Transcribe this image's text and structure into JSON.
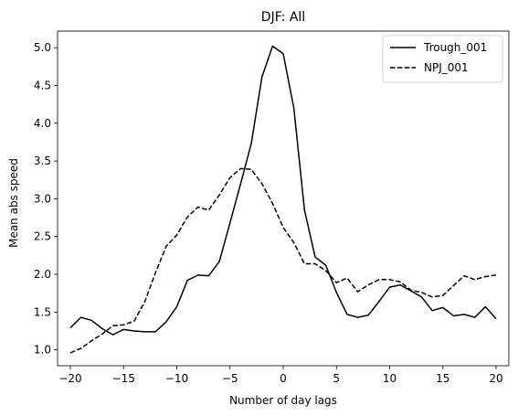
{
  "chart_data": {
    "type": "line",
    "title": "DJF: All",
    "xlabel": "Number of day lags",
    "ylabel": "Mean abs speed",
    "xlim": [
      -21.2,
      21.2
    ],
    "ylim": [
      0.79,
      5.22
    ],
    "xticks": [
      -20,
      -15,
      -10,
      -5,
      0,
      5,
      10,
      15,
      20
    ],
    "xtick_labels": [
      "−20",
      "−15",
      "−10",
      "−5",
      "0",
      "5",
      "10",
      "15",
      "20"
    ],
    "yticks": [
      1.0,
      1.5,
      2.0,
      2.5,
      3.0,
      3.5,
      4.0,
      4.5,
      5.0
    ],
    "ytick_labels": [
      "1.0",
      "1.5",
      "2.0",
      "2.5",
      "3.0",
      "3.5",
      "4.0",
      "4.5",
      "5.0"
    ],
    "grid": false,
    "legend_position": "top-right",
    "x": [
      -20,
      -19,
      -18,
      -17,
      -16,
      -15,
      -14,
      -13,
      -12,
      -11,
      -10,
      -9,
      -8,
      -7,
      -6,
      -5,
      -4,
      -3,
      -2,
      -1,
      0,
      1,
      2,
      3,
      4,
      5,
      6,
      7,
      8,
      9,
      10,
      11,
      12,
      13,
      14,
      15,
      16,
      17,
      18,
      19,
      20
    ],
    "series": [
      {
        "name": "Trough_001",
        "style": "solid",
        "color": "#000000",
        "values": [
          1.29,
          1.43,
          1.39,
          1.28,
          1.2,
          1.27,
          1.25,
          1.24,
          1.24,
          1.37,
          1.57,
          1.92,
          1.99,
          1.98,
          2.17,
          2.68,
          3.2,
          3.73,
          4.61,
          5.02,
          4.92,
          4.2,
          2.85,
          2.23,
          2.12,
          1.76,
          1.47,
          1.43,
          1.46,
          1.64,
          1.83,
          1.86,
          1.78,
          1.7,
          1.52,
          1.56,
          1.45,
          1.47,
          1.43,
          1.57,
          1.41
        ]
      },
      {
        "name": "NPJ_001",
        "style": "dashed",
        "color": "#000000",
        "values": [
          0.96,
          1.02,
          1.12,
          1.21,
          1.32,
          1.33,
          1.38,
          1.64,
          2.02,
          2.37,
          2.52,
          2.76,
          2.89,
          2.85,
          3.05,
          3.28,
          3.4,
          3.39,
          3.2,
          2.94,
          2.62,
          2.42,
          2.14,
          2.14,
          2.05,
          1.89,
          1.95,
          1.77,
          1.86,
          1.93,
          1.93,
          1.9,
          1.79,
          1.76,
          1.7,
          1.72,
          1.85,
          1.98,
          1.93,
          1.97,
          1.99
        ]
      }
    ]
  }
}
